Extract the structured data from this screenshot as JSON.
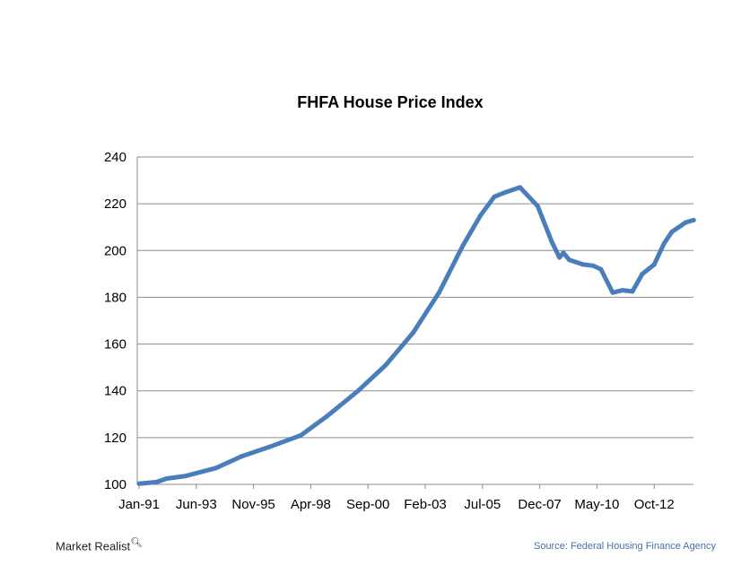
{
  "chart_data": {
    "type": "line",
    "title": "FHFA House Price Index",
    "xlabel": "",
    "ylabel": "",
    "ylim": [
      100,
      240
    ],
    "yticks": [
      100,
      120,
      140,
      160,
      180,
      200,
      220,
      240
    ],
    "xticks": [
      "Jan-91",
      "Jun-93",
      "Nov-95",
      "Apr-98",
      "Sep-00",
      "Feb-03",
      "Jul-05",
      "Dec-07",
      "May-10",
      "Oct-12"
    ],
    "xlim": [
      "1991-01",
      "2014-06"
    ],
    "grid": "horizontal",
    "legend": "none",
    "color": "#4a7ebb",
    "series": [
      {
        "x": [
          "1991-01",
          "1991-10",
          "1992-03",
          "1992-12",
          "1994-04",
          "1995-05",
          "1996-07",
          "1997-11",
          "1998-12",
          "2000-04",
          "2001-06",
          "2002-08",
          "2003-09",
          "2004-09",
          "2005-06",
          "2006-01",
          "2006-07",
          "2007-02",
          "2007-11",
          "2008-06",
          "2008-10",
          "2008-12",
          "2009-03",
          "2009-10",
          "2010-03",
          "2010-07",
          "2011-01",
          "2011-06",
          "2011-11",
          "2012-04",
          "2012-10",
          "2013-03",
          "2013-07",
          "2014-02",
          "2014-06"
        ],
        "values": [
          100.3,
          101,
          102.5,
          103.5,
          107,
          112,
          116,
          121,
          129,
          140,
          151,
          165,
          182,
          202,
          215,
          223,
          225,
          227,
          219,
          204,
          197,
          199,
          196,
          194,
          193.5,
          192,
          182,
          183,
          182.5,
          190,
          194,
          203,
          208,
          212,
          213
        ]
      }
    ]
  },
  "footer": {
    "logo": "Market Realist",
    "source": "Source: Federal Housing Finance Agency"
  }
}
